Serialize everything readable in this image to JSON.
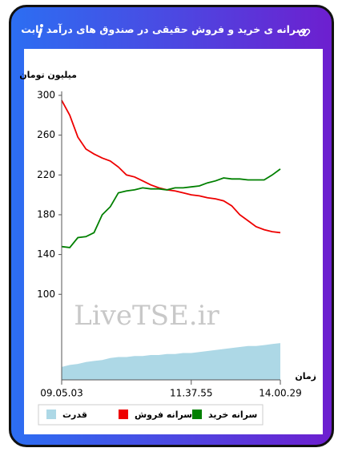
{
  "header": {
    "title": "سرانه ی خرید و فروش حقیقی در صندوق های درآمد ثابت"
  },
  "chart_data": {
    "type": "line",
    "y_label": "میلیون تومان",
    "x_label": "زمان",
    "watermark": "LiveTSE.ir",
    "categories": [
      "09.05.03",
      null,
      null,
      null,
      null,
      null,
      null,
      null,
      null,
      null,
      null,
      null,
      null,
      null,
      null,
      null,
      "11.37.55",
      null,
      null,
      null,
      null,
      null,
      null,
      null,
      null,
      null,
      null,
      "14.00.29"
    ],
    "ylim": [
      14,
      300
    ],
    "yticks": [
      100,
      140,
      180,
      220,
      260,
      300
    ],
    "series": [
      {
        "name": "قدرت",
        "color": "#add8e6",
        "kind": "area",
        "values": [
          27,
          29,
          30,
          32,
          33,
          34,
          36,
          37,
          37,
          38,
          38,
          39,
          39,
          40,
          40,
          41,
          41,
          42,
          43,
          44,
          45,
          46,
          47,
          48,
          48,
          49,
          50,
          51
        ]
      },
      {
        "name": "سرانه فروش",
        "color": "#ee0000",
        "kind": "line",
        "values": [
          295,
          280,
          258,
          246,
          241,
          237,
          234,
          228,
          220,
          218,
          214,
          210,
          207,
          205,
          204,
          202,
          200,
          199,
          197,
          196,
          194,
          189,
          180,
          174,
          168,
          165,
          163,
          162
        ]
      },
      {
        "name": "سرانه خرید",
        "color": "#008000",
        "kind": "line",
        "values": [
          148,
          147,
          157,
          158,
          162,
          180,
          188,
          202,
          204,
          205,
          207,
          206,
          206,
          205,
          207,
          207,
          208,
          209,
          212,
          214,
          217,
          216,
          216,
          215,
          215,
          215,
          220,
          226
        ]
      }
    ]
  }
}
